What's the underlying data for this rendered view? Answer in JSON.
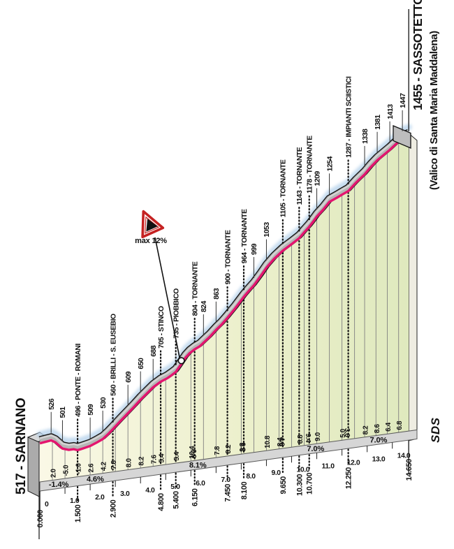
{
  "header": {
    "start_label": "517 - SARNANO",
    "summit_label": "1455 - SASSOTETTO",
    "summit_sublabel": "(Valico di Santa Maria Maddalena)",
    "max_gradient_sign": "max 12%",
    "brand": "SDS"
  },
  "chart_data": {
    "type": "area",
    "x_unit": "km",
    "y_unit": "m",
    "x_range": [
      0,
      14.65
    ],
    "y_range": [
      517,
      1455
    ],
    "start_name": "517 - SARNANO",
    "summit_name": "1455 - SASSOTETTO (Valico di Santa Maria Maddalena)",
    "profile": [
      [
        0,
        517
      ],
      [
        0.2,
        521
      ],
      [
        0.45,
        526
      ],
      [
        0.62,
        520
      ],
      [
        0.9,
        501
      ],
      [
        1.15,
        497
      ],
      [
        1.35,
        499
      ],
      [
        1.5,
        496
      ],
      [
        1.7,
        501
      ],
      [
        2,
        509
      ],
      [
        2.25,
        519
      ],
      [
        2.5,
        530
      ],
      [
        2.7,
        544
      ],
      [
        2.9,
        560
      ],
      [
        3.2,
        585
      ],
      [
        3.5,
        609
      ],
      [
        3.75,
        629
      ],
      [
        4,
        650
      ],
      [
        4.25,
        669
      ],
      [
        4.5,
        688
      ],
      [
        4.8,
        705
      ],
      [
        5.05,
        715
      ],
      [
        5.25,
        726
      ],
      [
        5.4,
        735
      ],
      [
        5.6,
        757
      ],
      [
        5.78,
        778
      ],
      [
        5.95,
        792
      ],
      [
        6.15,
        804
      ],
      [
        6.35,
        813
      ],
      [
        6.5,
        824
      ],
      [
        6.75,
        842
      ],
      [
        7,
        863
      ],
      [
        7.2,
        878
      ],
      [
        7.45,
        900
      ],
      [
        7.75,
        928
      ],
      [
        8.1,
        964
      ],
      [
        8.3,
        982
      ],
      [
        8.5,
        999
      ],
      [
        8.75,
        1025
      ],
      [
        9,
        1053
      ],
      [
        9.3,
        1080
      ],
      [
        9.65,
        1105
      ],
      [
        10,
        1125
      ],
      [
        10.3,
        1143
      ],
      [
        10.5,
        1161
      ],
      [
        10.7,
        1178
      ],
      [
        10.85,
        1193
      ],
      [
        11,
        1209
      ],
      [
        11.25,
        1230
      ],
      [
        11.5,
        1254
      ],
      [
        11.8,
        1267
      ],
      [
        12,
        1276
      ],
      [
        12.25,
        1287
      ],
      [
        12.55,
        1312
      ],
      [
        12.9,
        1338
      ],
      [
        13.15,
        1361
      ],
      [
        13.4,
        1381
      ],
      [
        13.65,
        1397
      ],
      [
        13.9,
        1413
      ],
      [
        14.15,
        1431
      ],
      [
        14.4,
        1447
      ],
      [
        14.55,
        1452
      ],
      [
        14.65,
        1455
      ]
    ],
    "waypoints": [
      {
        "km": 0.45,
        "label": "526",
        "named": false
      },
      {
        "km": 0.9,
        "label": "501",
        "named": false
      },
      {
        "km": 1.5,
        "label": "496 - PONTE - ROMANI",
        "named": true
      },
      {
        "km": 2.0,
        "label": "509",
        "named": false
      },
      {
        "km": 2.5,
        "label": "530",
        "named": false
      },
      {
        "km": 2.9,
        "label": "560 - BRILLI - S. EUSEBIO",
        "named": true
      },
      {
        "km": 3.5,
        "label": "609",
        "named": false
      },
      {
        "km": 4.0,
        "label": "650",
        "named": false
      },
      {
        "km": 4.5,
        "label": "688",
        "named": false
      },
      {
        "km": 4.8,
        "label": "705 - STINCO",
        "named": true
      },
      {
        "km": 5.4,
        "label": "735 - PIOBBICO",
        "named": true
      },
      {
        "km": 6.15,
        "label": "804 - TORNANTE",
        "named": true
      },
      {
        "km": 6.5,
        "label": "824",
        "named": false
      },
      {
        "km": 7.0,
        "label": "863",
        "named": false
      },
      {
        "km": 7.45,
        "label": "900 - TORNANTE",
        "named": true
      },
      {
        "km": 8.1,
        "label": "964 - TORNANTE",
        "named": true
      },
      {
        "km": 8.5,
        "label": "999",
        "named": false
      },
      {
        "km": 9.0,
        "label": "1053",
        "named": false
      },
      {
        "km": 9.65,
        "label": "1105 - TORNANTE",
        "named": true
      },
      {
        "km": 10.3,
        "label": "1143 - TORNANTE",
        "named": true
      },
      {
        "km": 10.7,
        "label": "1178 - TORNANTE",
        "named": true
      },
      {
        "km": 11.0,
        "label": "1209",
        "named": false
      },
      {
        "km": 11.5,
        "label": "1254",
        "named": false
      },
      {
        "km": 12.25,
        "label": "1287 - IMPIANTI SCIISTICI",
        "named": true
      },
      {
        "km": 12.9,
        "label": "1338",
        "named": false
      },
      {
        "km": 13.4,
        "label": "1381",
        "named": false
      },
      {
        "km": 13.9,
        "label": "1413",
        "named": false
      },
      {
        "km": 14.4,
        "label": "1447",
        "named": false
      }
    ],
    "gradient_values": [
      {
        "km": 0.5,
        "value": "2.0",
        "dotted": false,
        "flipped": false
      },
      {
        "km": 1.0,
        "value": "-5.0",
        "dotted": false,
        "flipped": false
      },
      {
        "km": 1.5,
        "value": "-1.0",
        "dotted": true,
        "flipped": false
      },
      {
        "km": 2.0,
        "value": "2.6",
        "dotted": false,
        "flipped": false
      },
      {
        "km": 2.5,
        "value": "4.2",
        "dotted": false,
        "flipped": false
      },
      {
        "km": 2.9,
        "value": "7.8",
        "dotted": true,
        "flipped": false
      },
      {
        "km": 3.5,
        "value": "8.0",
        "dotted": false,
        "flipped": false
      },
      {
        "km": 4.0,
        "value": "8.2",
        "dotted": false,
        "flipped": false
      },
      {
        "km": 4.5,
        "value": "7.6",
        "dotted": false,
        "flipped": false
      },
      {
        "km": 4.8,
        "value": "5.4",
        "dotted": true,
        "flipped": false
      },
      {
        "km": 5.4,
        "value": "5.4",
        "dotted": true,
        "flipped": false
      },
      {
        "km": 6.0,
        "value": "10.4",
        "dotted": false,
        "flipped": false
      },
      {
        "km": 6.15,
        "value": "6.0",
        "dotted": true,
        "flipped": true
      },
      {
        "km": 7.0,
        "value": "7.8",
        "dotted": false,
        "flipped": false
      },
      {
        "km": 7.45,
        "value": "8.2",
        "dotted": true,
        "flipped": false
      },
      {
        "km": 8.0,
        "value": "9.8",
        "dotted": false,
        "flipped": false
      },
      {
        "km": 8.1,
        "value": "9.2",
        "dotted": true,
        "flipped": true
      },
      {
        "km": 9.0,
        "value": "10.8",
        "dotted": false,
        "flipped": false
      },
      {
        "km": 9.5,
        "value": "8.4",
        "dotted": false,
        "flipped": false
      },
      {
        "km": 9.65,
        "value": "4.6",
        "dotted": true,
        "flipped": true
      },
      {
        "km": 10.3,
        "value": "8.8",
        "dotted": true,
        "flipped": false
      },
      {
        "km": 10.7,
        "value": "9.4",
        "dotted": true,
        "flipped": true
      },
      {
        "km": 11.0,
        "value": "9.0",
        "dotted": false,
        "flipped": false
      },
      {
        "km": 12.0,
        "value": "5.0",
        "dotted": false,
        "flipped": false
      },
      {
        "km": 12.25,
        "value": "3.6",
        "dotted": true,
        "flipped": true
      },
      {
        "km": 12.9,
        "value": "8.2",
        "dotted": false,
        "flipped": false
      },
      {
        "km": 13.35,
        "value": "8.6",
        "dotted": false,
        "flipped": false
      },
      {
        "km": 13.8,
        "value": "6.4",
        "dotted": false,
        "flipped": false
      },
      {
        "km": 14.25,
        "value": "6.8",
        "dotted": false,
        "flipped": false
      }
    ],
    "grid_only_kms": [
      3.0,
      5.0,
      6.5,
      8.5,
      10.0,
      10.5,
      11.5,
      12.5
    ],
    "sectors": [
      {
        "from_km": 0,
        "to_km": 1.5,
        "label": "-1.4%"
      },
      {
        "from_km": 1.5,
        "to_km": 2.9,
        "label": "4.6%"
      },
      {
        "from_km": 2.9,
        "to_km": 9.65,
        "label": "8.1%"
      },
      {
        "from_km": 9.65,
        "to_km": 12.25,
        "label": "7.0%"
      },
      {
        "from_km": 12.25,
        "to_km": 14.65,
        "label": "7.0%"
      }
    ],
    "km_ticks": [
      {
        "km": 0,
        "label": "0"
      },
      {
        "km": 1,
        "label": "1.0"
      },
      {
        "km": 2,
        "label": "2.0"
      },
      {
        "km": 3,
        "label": "3.0"
      },
      {
        "km": 4,
        "label": "4.0"
      },
      {
        "km": 5,
        "label": "5.0"
      },
      {
        "km": 6,
        "label": "6.0"
      },
      {
        "km": 7,
        "label": "7.0"
      },
      {
        "km": 8,
        "label": "8.0"
      },
      {
        "km": 9,
        "label": "9.0"
      },
      {
        "km": 10,
        "label": "10.0"
      },
      {
        "km": 11,
        "label": "11.0"
      },
      {
        "km": 12,
        "label": "12.0"
      },
      {
        "km": 13,
        "label": "13.0"
      },
      {
        "km": 14,
        "label": "14.0"
      }
    ],
    "distance_marks": [
      {
        "km": 0,
        "label": "0.000"
      },
      {
        "km": 1.5,
        "label": "1.500"
      },
      {
        "km": 2.9,
        "label": "2.900"
      },
      {
        "km": 4.8,
        "label": "4.800"
      },
      {
        "km": 5.4,
        "label": "5.400"
      },
      {
        "km": 6.15,
        "label": "6.150"
      },
      {
        "km": 7.45,
        "label": "7.450"
      },
      {
        "km": 8.1,
        "label": "8.100"
      },
      {
        "km": 9.65,
        "label": "9.650"
      },
      {
        "km": 10.3,
        "label": "10.300"
      },
      {
        "km": 10.7,
        "label": "10.700"
      },
      {
        "km": 12.25,
        "label": "12.250"
      },
      {
        "km": 14.65,
        "label": "14.650"
      }
    ],
    "max_gradient": {
      "km": 5.62,
      "label": "max 12%"
    },
    "legend_position": "none",
    "grid": true,
    "colors": {
      "stripe": "#E4156F",
      "road": "#B6B6B6",
      "road_outline": "#161616",
      "road_highlight": "#D8D8D8",
      "band": "#D6D6D6",
      "band_edge": "#5A5A5A",
      "fill_left": "#FAF8E6",
      "fill_right": "#DFE9BE",
      "glow": "#B7D3EB",
      "grid": "#808080",
      "dot": "#141414",
      "text": "#111111",
      "sign_red": "#C52222",
      "face_right": "#EFEDE2",
      "pedestal_front": "#ABABAB",
      "pedestal_top": "#D8D8D8"
    }
  }
}
